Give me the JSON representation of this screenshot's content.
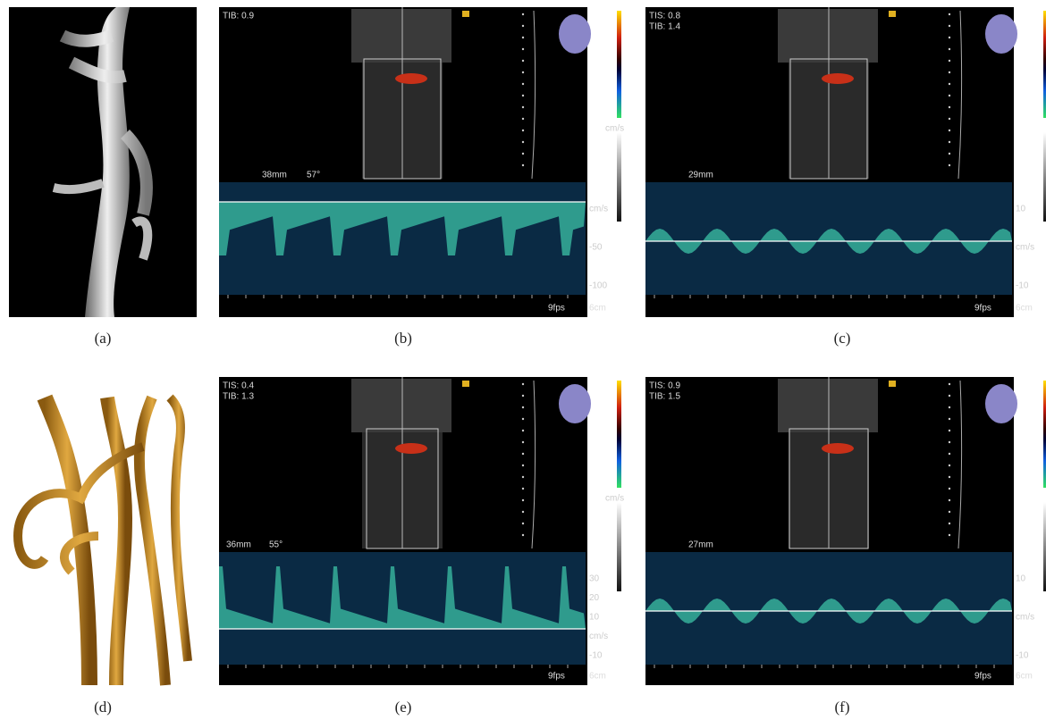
{
  "panels": [
    {
      "label": "(a)"
    },
    {
      "label": "(b)",
      "overlay": [
        "TIB: 0.9"
      ],
      "depth": "38mm",
      "angle": "57°",
      "colorbar_unit": "cm/s",
      "scale": [
        "cm/s",
        "-50",
        "-100"
      ],
      "fps": "9fps",
      "size": "6cm"
    },
    {
      "label": "(c)",
      "overlay": [
        "TIS: 0.8",
        "TIB: 1.4"
      ],
      "depth": "29mm",
      "scale": [
        "10",
        "cm/s",
        "-10"
      ],
      "fps": "9fps",
      "size": "6cm"
    },
    {
      "label": "(d)"
    },
    {
      "label": "(e)",
      "overlay": [
        "TIS: 0.4",
        "TIB: 1.3"
      ],
      "depth": "36mm",
      "angle": "55°",
      "colorbar_unit": "cm/s",
      "scale": [
        "30",
        "20",
        "10",
        "cm/s",
        "-10"
      ],
      "fps": "9fps",
      "size": "6cm"
    },
    {
      "label": "(f)",
      "overlay": [
        "TIS: 0.9",
        "TIB: 1.5"
      ],
      "depth": "27mm",
      "scale": [
        "10",
        "cm/s",
        "-10"
      ],
      "fps": "9fps",
      "size": "6cm"
    }
  ]
}
